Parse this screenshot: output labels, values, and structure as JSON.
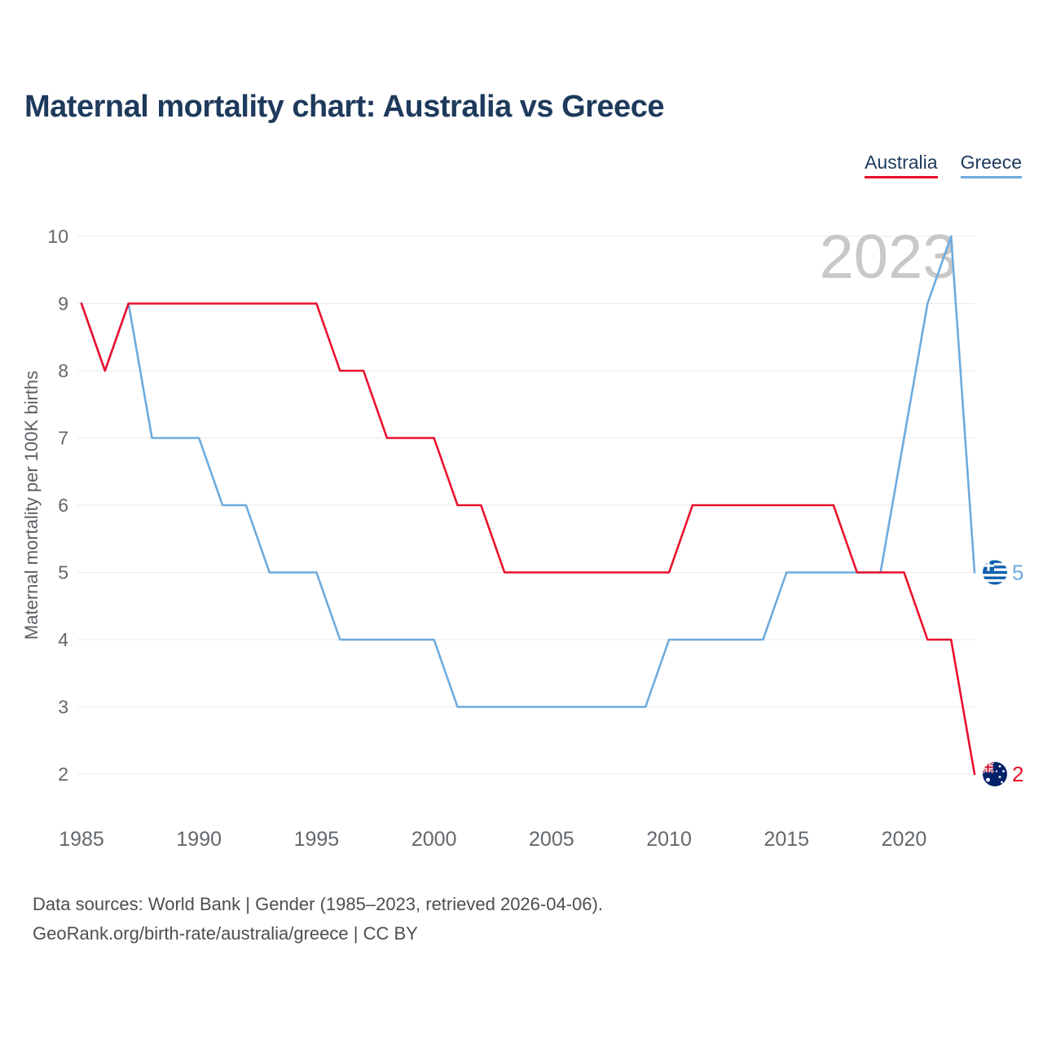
{
  "title": "Maternal mortality chart: Australia vs Greece",
  "footer": {
    "line1": "Data sources: World Bank | Gender (1985–2023, retrieved 2026-04-06).",
    "line2": "GeoRank.org/birth-rate/australia/greece | CC BY"
  },
  "chart_data": {
    "type": "line",
    "title": "Maternal mortality chart: Australia vs Greece",
    "xlabel": "",
    "ylabel": "Maternal mortality per 100K births",
    "watermark": "2023",
    "grid": "horizontal",
    "legend_position": "top-right",
    "xlim": [
      1985,
      2023
    ],
    "ylim": [
      2,
      10
    ],
    "x_ticks": [
      1985,
      1990,
      1995,
      2000,
      2005,
      2010,
      2015,
      2020
    ],
    "y_ticks": [
      2,
      3,
      4,
      5,
      6,
      7,
      8,
      9,
      10
    ],
    "x": [
      1985,
      1986,
      1987,
      1988,
      1989,
      1990,
      1991,
      1992,
      1993,
      1994,
      1995,
      1996,
      1997,
      1998,
      1999,
      2000,
      2001,
      2002,
      2003,
      2004,
      2005,
      2006,
      2007,
      2008,
      2009,
      2010,
      2011,
      2012,
      2013,
      2014,
      2015,
      2016,
      2017,
      2018,
      2019,
      2020,
      2021,
      2022,
      2023
    ],
    "series": [
      {
        "name": "Australia",
        "color": "#e8112d",
        "flag_icon": "australia-flag-icon",
        "end_label": "2",
        "values": [
          9,
          8,
          9,
          9,
          9,
          9,
          9,
          9,
          9,
          9,
          9,
          8,
          8,
          7,
          7,
          7,
          6,
          6,
          5,
          5,
          5,
          5,
          5,
          5,
          5,
          5,
          6,
          6,
          6,
          6,
          6,
          6,
          6,
          5,
          5,
          5,
          4,
          4,
          2
        ]
      },
      {
        "name": "Greece",
        "color": "#6dabde",
        "flag_icon": "greece-flag-icon",
        "end_label": "5",
        "values": [
          9,
          8,
          9,
          7,
          7,
          7,
          6,
          6,
          5,
          5,
          5,
          4,
          4,
          4,
          4,
          4,
          3,
          3,
          3,
          3,
          3,
          3,
          3,
          3,
          3,
          4,
          4,
          4,
          4,
          4,
          5,
          5,
          5,
          5,
          5,
          7,
          9,
          10,
          5
        ]
      }
    ]
  }
}
